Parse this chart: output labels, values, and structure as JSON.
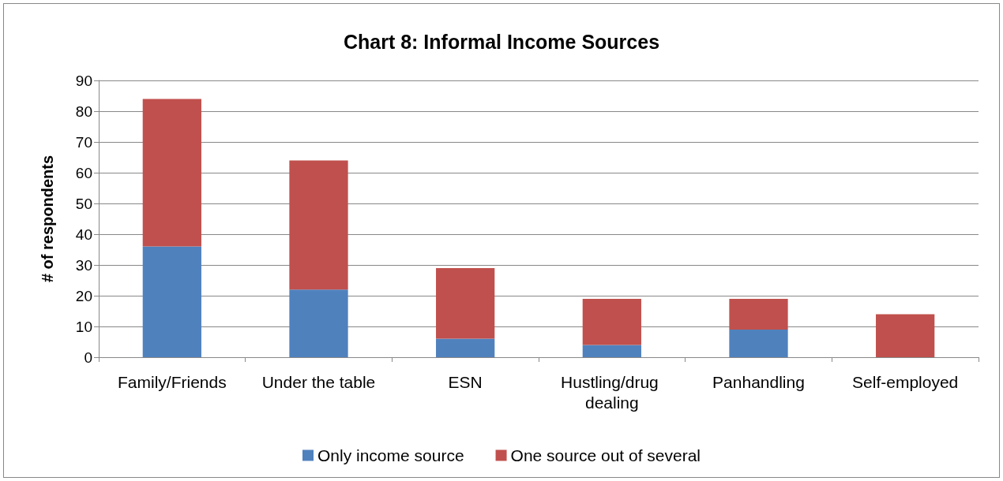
{
  "chart_data": {
    "type": "bar",
    "title": "Chart 8: Informal Income Sources",
    "ylabel": "# of respondents",
    "categories": [
      "Family/Friends",
      "Under the table",
      "ESN",
      "Hustling/drug dealing",
      "Panhandling",
      "Self-employed"
    ],
    "series": [
      {
        "name": "Only income source",
        "color": "#4f81bd",
        "values": [
          36,
          22,
          6,
          4,
          9,
          0
        ]
      },
      {
        "name": "One source out of several",
        "color": "#c0504d",
        "values": [
          48,
          42,
          23,
          15,
          10,
          14
        ]
      }
    ],
    "stacked": true,
    "ylim": [
      0,
      90
    ],
    "yticks": [
      0,
      10,
      20,
      30,
      40,
      50,
      60,
      70,
      80,
      90
    ],
    "grid": "y",
    "legend": "bottom"
  }
}
